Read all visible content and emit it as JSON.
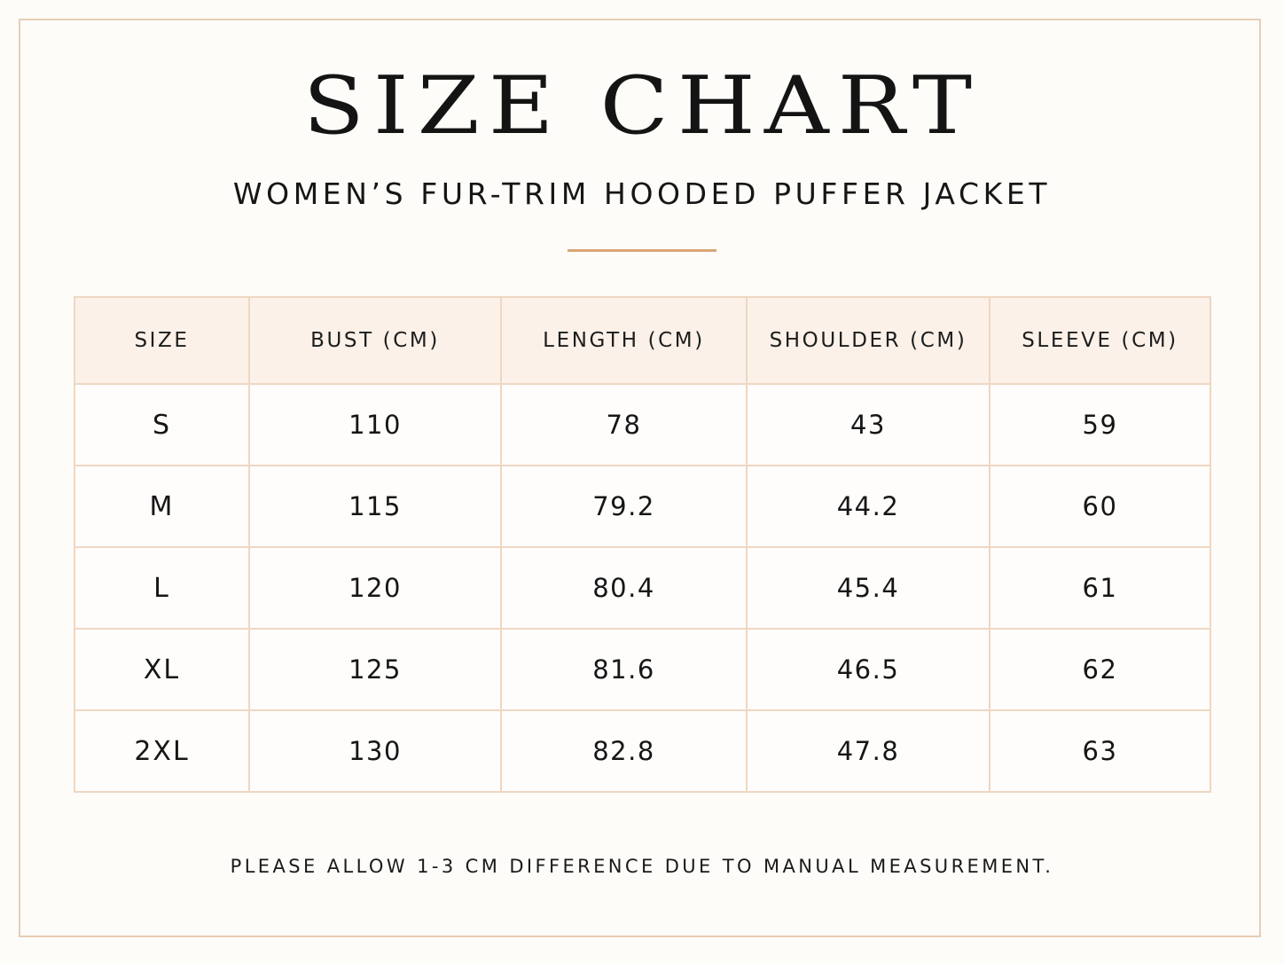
{
  "header": {
    "title": "SIZE CHART",
    "subtitle": "WOMEN’S FUR-TRIM HOODED PUFFER JACKET"
  },
  "colors": {
    "frame_border": "#e8cdb3",
    "divider": "#d9a673",
    "header_background": "#fbf1e9",
    "cell_border": "#efd7c2",
    "background": "#fdfcf9"
  },
  "table": {
    "columns": [
      "SIZE",
      "BUST (CM)",
      "LENGTH (CM)",
      "SHOULDER (CM)",
      "SLEEVE (CM)"
    ],
    "rows": [
      [
        "S",
        "110",
        "78",
        "43",
        "59"
      ],
      [
        "M",
        "115",
        "79.2",
        "44.2",
        "60"
      ],
      [
        "L",
        "120",
        "80.4",
        "45.4",
        "61"
      ],
      [
        "XL",
        "125",
        "81.6",
        "46.5",
        "62"
      ],
      [
        "2XL",
        "130",
        "82.8",
        "47.8",
        "63"
      ]
    ]
  },
  "footer": {
    "note": "PLEASE ALLOW 1-3 CM DIFFERENCE DUE TO MANUAL MEASUREMENT."
  }
}
